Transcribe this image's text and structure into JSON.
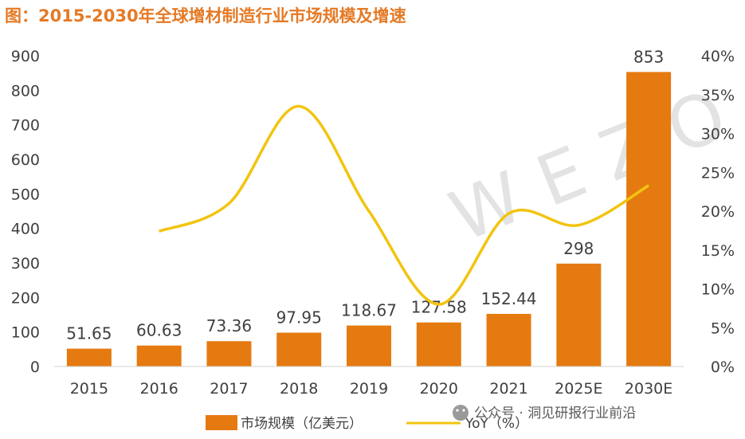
{
  "title": "图：2015-2030年全球增材制造行业市场规模及增速",
  "watermark": "WEZO",
  "source_caption": "公众号 · 洞见研报行业前沿",
  "colors": {
    "bar": "#e57a10",
    "line": "#f2c40f",
    "title": "#e57a26"
  },
  "chart_data": {
    "type": "bar",
    "categories": [
      "2015",
      "2016",
      "2017",
      "2018",
      "2019",
      "2020",
      "2021",
      "2025E",
      "2030E"
    ],
    "series": [
      {
        "name": "市场规模（亿美元）",
        "type": "bar",
        "axis": "left",
        "values": [
          51.65,
          60.63,
          73.36,
          97.95,
          118.67,
          127.58,
          152.44,
          298,
          853
        ],
        "labels": [
          "51.65",
          "60.63",
          "73.36",
          "97.95",
          "118.67",
          "127.58",
          "152.44",
          "298",
          "853"
        ]
      },
      {
        "name": "YoY（%）",
        "type": "line",
        "axis": "right",
        "values": [
          null,
          17.4,
          21.0,
          33.5,
          20.0,
          8.0,
          19.7,
          18.2,
          23.3
        ]
      }
    ],
    "y_left": {
      "min": 0,
      "max": 900,
      "step": 100,
      "ticks": [
        "0",
        "100",
        "200",
        "300",
        "400",
        "500",
        "600",
        "700",
        "800",
        "900"
      ]
    },
    "y_right": {
      "min": 0,
      "max": 40,
      "step": 5,
      "ticks": [
        "0%",
        "5%",
        "10%",
        "15%",
        "20%",
        "25%",
        "30%",
        "35%",
        "40%"
      ]
    },
    "grid": false,
    "legend_position": "bottom"
  }
}
